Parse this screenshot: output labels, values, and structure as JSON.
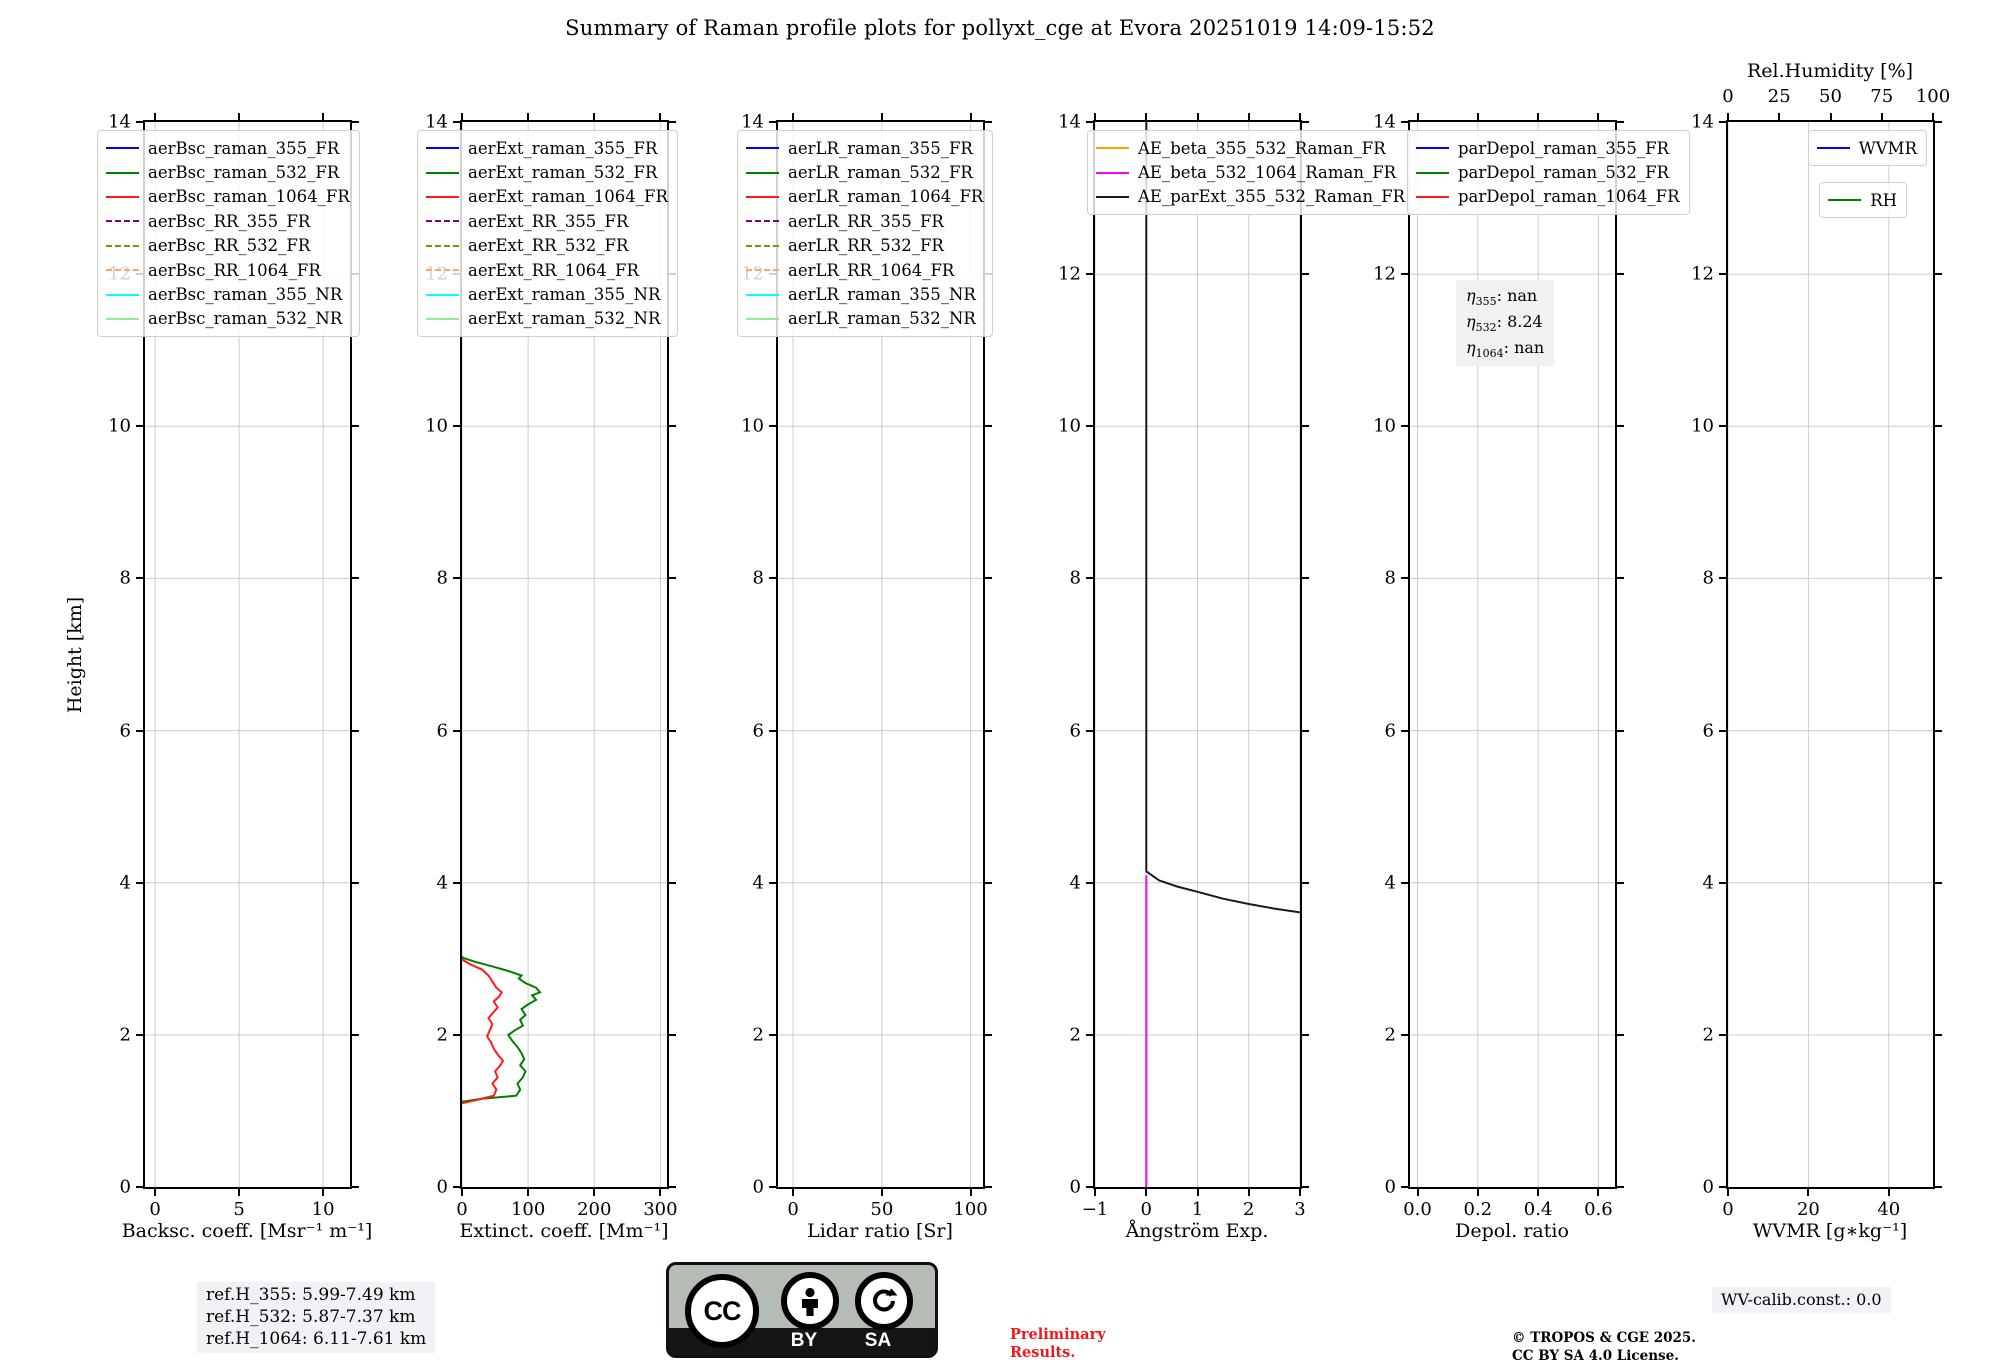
{
  "title": "Summary of Raman profile plots for pollyxt_cge at Evora 20251019 14:09-15:52",
  "height_axis": {
    "label": "Height [km]",
    "min": 0,
    "max": 14,
    "ticks": [
      {
        "v": 0,
        "label": "0"
      },
      {
        "v": 2,
        "label": "2"
      },
      {
        "v": 4,
        "label": "4"
      },
      {
        "v": 6,
        "label": "6"
      },
      {
        "v": 8,
        "label": "8"
      },
      {
        "v": 10,
        "label": "10"
      },
      {
        "v": 12,
        "label": "12"
      },
      {
        "v": 14,
        "label": "14"
      }
    ]
  },
  "panels": [
    {
      "name": "backscatter",
      "xlabel": "Backsc. coeff. [Msr⁻¹ m⁻¹]",
      "xlim": [
        -0.6,
        11.6
      ],
      "xticks": [
        {
          "v": 0,
          "label": "0"
        },
        {
          "v": 5,
          "label": "5"
        },
        {
          "v": 10,
          "label": "10"
        }
      ],
      "legend": [
        {
          "label": "aerBsc_raman_355_FR",
          "color": "#0000ff",
          "dash": false
        },
        {
          "label": "aerBsc_raman_532_FR",
          "color": "#008000",
          "dash": false
        },
        {
          "label": "aerBsc_raman_1064_FR",
          "color": "#ff1a1a",
          "dash": false
        },
        {
          "label": "aerBsc_RR_355_FR",
          "color": "#800080",
          "dash": true
        },
        {
          "label": "aerBsc_RR_532_FR",
          "color": "#8b8b00",
          "dash": true
        },
        {
          "label": "aerBsc_RR_1064_FR",
          "color": "#ffa07a",
          "dash": true
        },
        {
          "label": "aerBsc_raman_355_NR",
          "color": "#00ffff",
          "dash": false
        },
        {
          "label": "aerBsc_raman_532_NR",
          "color": "#90ee90",
          "dash": false
        }
      ]
    },
    {
      "name": "extinction",
      "xlabel": "Extinct. coeff. [Mm⁻¹]",
      "xlim": [
        0,
        310
      ],
      "xticks": [
        {
          "v": 0,
          "label": "0"
        },
        {
          "v": 100,
          "label": "100"
        },
        {
          "v": 200,
          "label": "200"
        },
        {
          "v": 300,
          "label": "300"
        }
      ],
      "legend": [
        {
          "label": "aerExt_raman_355_FR",
          "color": "#0000ff",
          "dash": false
        },
        {
          "label": "aerExt_raman_532_FR",
          "color": "#008000",
          "dash": false
        },
        {
          "label": "aerExt_raman_1064_FR",
          "color": "#ff1a1a",
          "dash": false
        },
        {
          "label": "aerExt_RR_355_FR",
          "color": "#800080",
          "dash": true
        },
        {
          "label": "aerExt_RR_532_FR",
          "color": "#8b8b00",
          "dash": true
        },
        {
          "label": "aerExt_RR_1064_FR",
          "color": "#ffa07a",
          "dash": true
        },
        {
          "label": "aerExt_raman_355_NR",
          "color": "#00ffff",
          "dash": false
        },
        {
          "label": "aerExt_raman_532_NR",
          "color": "#90ee90",
          "dash": false
        }
      ]
    },
    {
      "name": "lidar_ratio",
      "xlabel": "Lidar ratio [Sr]",
      "xlim": [
        -8.5,
        107
      ],
      "xticks": [
        {
          "v": 0,
          "label": "0"
        },
        {
          "v": 50,
          "label": "50"
        },
        {
          "v": 100,
          "label": "100"
        }
      ],
      "legend": [
        {
          "label": "aerLR_raman_355_FR",
          "color": "#0000ff",
          "dash": false
        },
        {
          "label": "aerLR_raman_532_FR",
          "color": "#008000",
          "dash": false
        },
        {
          "label": "aerLR_raman_1064_FR",
          "color": "#ff1a1a",
          "dash": false
        },
        {
          "label": "aerLR_RR_355_FR",
          "color": "#800080",
          "dash": true
        },
        {
          "label": "aerLR_RR_532_FR",
          "color": "#8b8b00",
          "dash": true
        },
        {
          "label": "aerLR_RR_1064_FR",
          "color": "#ffa07a",
          "dash": true
        },
        {
          "label": "aerLR_raman_355_NR",
          "color": "#00ffff",
          "dash": false
        },
        {
          "label": "aerLR_raman_532_NR",
          "color": "#90ee90",
          "dash": false
        }
      ]
    },
    {
      "name": "angstrom",
      "xlabel": "Ångström Exp.",
      "xlim": [
        -1,
        3
      ],
      "xticks": [
        {
          "v": -1,
          "label": "−1"
        },
        {
          "v": 0,
          "label": "0"
        },
        {
          "v": 1,
          "label": "1"
        },
        {
          "v": 2,
          "label": "2"
        },
        {
          "v": 3,
          "label": "3"
        }
      ],
      "legend": [
        {
          "label": "AE_beta_355_532_Raman_FR",
          "color": "#ffa500",
          "dash": false
        },
        {
          "label": "AE_beta_532_1064_Raman_FR",
          "color": "#ff00ff",
          "dash": false
        },
        {
          "label": "AE_parExt_355_532_Raman_FR",
          "color": "#1a1a1a",
          "dash": false
        }
      ]
    },
    {
      "name": "depol_ratio",
      "xlabel": "Depol. ratio",
      "xlim": [
        -0.025,
        0.655
      ],
      "xticks": [
        {
          "v": 0,
          "label": "0.0"
        },
        {
          "v": 0.2,
          "label": "0.2"
        },
        {
          "v": 0.4,
          "label": "0.4"
        },
        {
          "v": 0.6,
          "label": "0.6"
        }
      ],
      "legend": [
        {
          "label": "parDepol_raman_355_FR",
          "color": "#0000ff",
          "dash": false
        },
        {
          "label": "parDepol_raman_532_FR",
          "color": "#008000",
          "dash": false
        },
        {
          "label": "parDepol_raman_1064_FR",
          "color": "#ff1a1a",
          "dash": false
        }
      ],
      "annotation": {
        "lines": [
          {
            "symbol": "η",
            "sub": "355",
            "value": "nan"
          },
          {
            "symbol": "η",
            "sub": "532",
            "value": "8.24"
          },
          {
            "symbol": "η",
            "sub": "1064",
            "value": "nan"
          }
        ]
      }
    },
    {
      "name": "wvmr",
      "xlabel": "WVMR [g∗kg⁻¹]",
      "xlim": [
        0,
        51
      ],
      "xticks": [
        {
          "v": 0,
          "label": "0"
        },
        {
          "v": 20,
          "label": "20"
        },
        {
          "v": 40,
          "label": "40"
        }
      ],
      "top_axis": {
        "label": "Rel.Humidity [%]",
        "lim": [
          0,
          100
        ],
        "ticks": [
          {
            "v": 0,
            "label": "0"
          },
          {
            "v": 25,
            "label": "25"
          },
          {
            "v": 50,
            "label": "50"
          },
          {
            "v": 75,
            "label": "75"
          },
          {
            "v": 100,
            "label": "100"
          }
        ]
      },
      "legend_boxes": [
        [
          {
            "label": "WVMR",
            "color": "#0000ff",
            "dash": false
          }
        ],
        [
          {
            "label": "RH",
            "color": "#008000",
            "dash": false
          }
        ]
      ]
    }
  ],
  "chart_data": {
    "type": "line",
    "ylabel": "Height [km]",
    "ylim": [
      0,
      14
    ],
    "grid": true,
    "series": [
      {
        "panel": "extinction",
        "name": "aerExt_raman_532_FR",
        "color": "#008000",
        "x_units": "Mm-1",
        "y_units": "km",
        "points": [
          [
            0,
            1.12
          ],
          [
            30,
            1.16
          ],
          [
            82,
            1.2
          ],
          [
            88,
            1.28
          ],
          [
            84,
            1.36
          ],
          [
            92,
            1.44
          ],
          [
            96,
            1.52
          ],
          [
            88,
            1.6
          ],
          [
            94,
            1.68
          ],
          [
            90,
            1.76
          ],
          [
            84,
            1.84
          ],
          [
            76,
            1.92
          ],
          [
            70,
            2.0
          ],
          [
            80,
            2.06
          ],
          [
            92,
            2.12
          ],
          [
            88,
            2.2
          ],
          [
            96,
            2.26
          ],
          [
            90,
            2.34
          ],
          [
            100,
            2.4
          ],
          [
            112,
            2.46
          ],
          [
            106,
            2.52
          ],
          [
            118,
            2.56
          ],
          [
            112,
            2.62
          ],
          [
            96,
            2.68
          ],
          [
            86,
            2.74
          ],
          [
            90,
            2.78
          ],
          [
            70,
            2.84
          ],
          [
            46,
            2.9
          ],
          [
            20,
            2.96
          ],
          [
            2,
            3.01
          ],
          [
            0,
            3.03
          ]
        ]
      },
      {
        "panel": "extinction",
        "name": "aerExt_raman_1064_FR",
        "color": "#ff1a1a",
        "x_units": "Mm-1",
        "y_units": "km",
        "points": [
          [
            0,
            1.1
          ],
          [
            20,
            1.14
          ],
          [
            48,
            1.2
          ],
          [
            52,
            1.28
          ],
          [
            46,
            1.36
          ],
          [
            54,
            1.44
          ],
          [
            50,
            1.52
          ],
          [
            58,
            1.6
          ],
          [
            62,
            1.66
          ],
          [
            54,
            1.74
          ],
          [
            48,
            1.82
          ],
          [
            44,
            1.9
          ],
          [
            38,
            1.98
          ],
          [
            42,
            2.06
          ],
          [
            46,
            2.14
          ],
          [
            40,
            2.22
          ],
          [
            48,
            2.3
          ],
          [
            54,
            2.36
          ],
          [
            48,
            2.44
          ],
          [
            56,
            2.5
          ],
          [
            60,
            2.56
          ],
          [
            52,
            2.62
          ],
          [
            46,
            2.7
          ],
          [
            40,
            2.78
          ],
          [
            30,
            2.86
          ],
          [
            14,
            2.92
          ],
          [
            2,
            2.98
          ],
          [
            0,
            3.0
          ]
        ]
      },
      {
        "panel": "angstrom",
        "name": "AE_beta_532_1064_Raman_FR",
        "color": "#ff00ff",
        "points": [
          [
            0,
            0
          ],
          [
            0,
            4.1
          ]
        ]
      },
      {
        "panel": "angstrom",
        "name": "AE_parExt_355_532_Raman_FR",
        "color": "#1a1a1a",
        "points": [
          [
            0,
            14
          ],
          [
            0,
            4.15
          ],
          [
            0.25,
            4.03
          ],
          [
            0.6,
            3.95
          ],
          [
            1.0,
            3.88
          ],
          [
            1.5,
            3.79
          ],
          [
            2.0,
            3.72
          ],
          [
            2.5,
            3.66
          ],
          [
            3.0,
            3.61
          ]
        ]
      }
    ]
  },
  "annotations": {
    "ref_h": [
      "ref.H_355: 5.99-7.49 km",
      "ref.H_532: 5.87-7.37 km",
      "ref.H_1064: 6.11-7.61 km"
    ],
    "wv_calib": "WV-calib.const.: 0.0"
  },
  "footer": {
    "preliminary_line1": "Preliminary",
    "preliminary_line2": "Results.",
    "copyright_line1": "© TROPOS & CGE 2025.",
    "copyright_line2": "CC BY SA 4.0 License.",
    "cc_badge": {
      "cc": "CC",
      "by": "BY",
      "sa": "SA"
    }
  }
}
